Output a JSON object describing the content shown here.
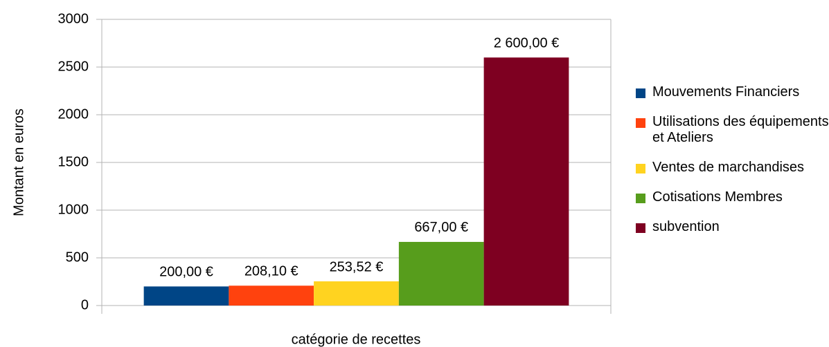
{
  "chart_data": {
    "type": "bar",
    "categories": [
      null
    ],
    "series": [
      {
        "name": "Mouvements Financiers",
        "color": "#004586",
        "values": [
          200
        ],
        "value_labels": [
          "200,00 €"
        ]
      },
      {
        "name": "Utilisations des équipements et Ateliers",
        "color": "#ff420e",
        "values": [
          208.1
        ],
        "value_labels": [
          "208,10 €"
        ]
      },
      {
        "name": "Ventes de marchandises",
        "color": "#ffd320",
        "values": [
          253.52
        ],
        "value_labels": [
          "253,52 €"
        ]
      },
      {
        "name": "Cotisations Membres",
        "color": "#579d1c",
        "values": [
          667
        ],
        "value_labels": [
          "667,00 €"
        ]
      },
      {
        "name": "subvention",
        "color": "#7e0021",
        "values": [
          2600
        ],
        "value_labels": [
          "2 600,00 €"
        ]
      }
    ],
    "ylabel": "Montant en euros",
    "xlabel": "catégorie de recettes",
    "ylim": [
      0,
      3000
    ],
    "yticks": [
      0,
      500,
      1000,
      1500,
      2000,
      2500,
      3000
    ],
    "grid": true,
    "legend": "right"
  }
}
